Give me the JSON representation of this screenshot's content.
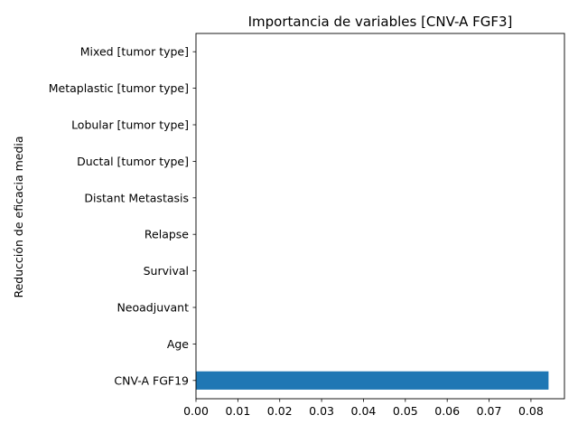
{
  "chart_data": {
    "type": "bar",
    "orientation": "horizontal",
    "title": "Importancia de variables [CNV-A FGF3]",
    "xlabel": "",
    "ylabel": "Reducción de eficacia media",
    "categories": [
      "CNV-A FGF19",
      "Age",
      "Neoadjuvant",
      "Survival",
      "Relapse",
      "Distant Metastasis",
      "Ductal [tumor type]",
      "Lobular [tumor type]",
      "Metaplastic [tumor type]",
      "Mixed [tumor type]"
    ],
    "values": [
      0.0842,
      0,
      0,
      0,
      0,
      0,
      0,
      0,
      0,
      0
    ],
    "xlim": [
      0,
      0.088
    ],
    "xticks": [
      "0.00",
      "0.01",
      "0.02",
      "0.03",
      "0.04",
      "0.05",
      "0.06",
      "0.07",
      "0.08"
    ],
    "bar_color": "#1f77b4",
    "grid": false,
    "legend": false
  }
}
